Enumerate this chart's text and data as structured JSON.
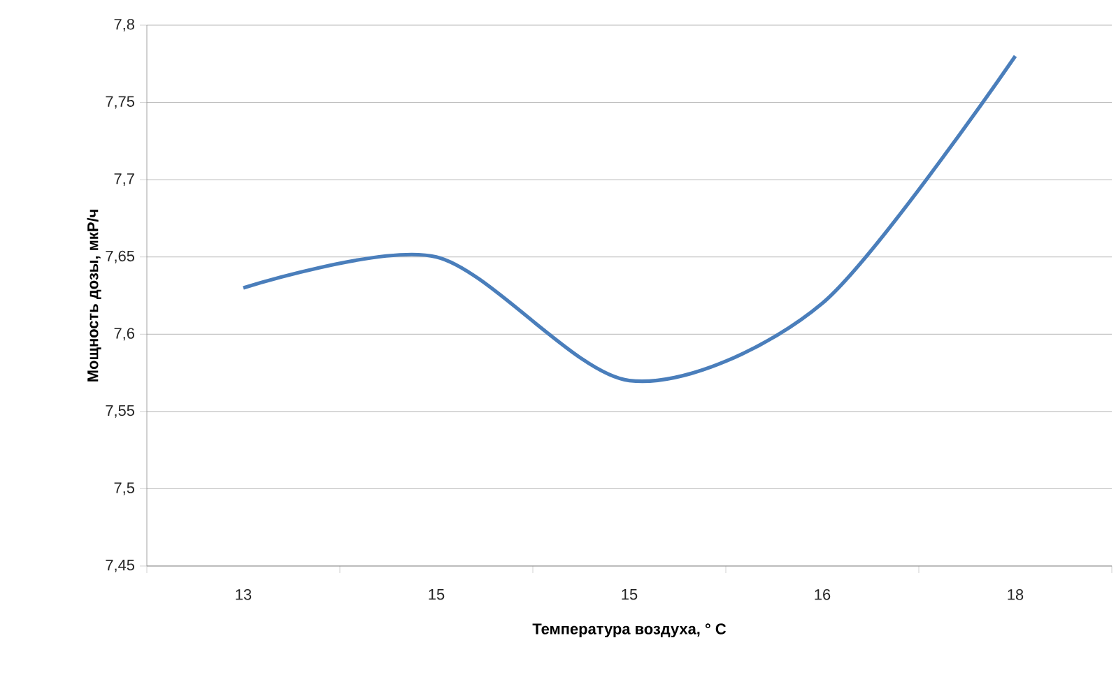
{
  "chart_data": {
    "type": "line",
    "xlabel": "Температура воздуха, ° С",
    "ylabel": "Мощность дозы, мкР/ч",
    "categories": [
      "13",
      "15",
      "15",
      "16",
      "18"
    ],
    "series": [
      {
        "color": "#4a7ebb",
        "values": [
          7.63,
          7.65,
          7.57,
          7.62,
          7.78
        ]
      }
    ],
    "ylim": [
      7.45,
      7.8
    ],
    "yticks": [
      {
        "value": 7.45,
        "label": "7,45"
      },
      {
        "value": 7.5,
        "label": "7,5"
      },
      {
        "value": 7.55,
        "label": "7,55"
      },
      {
        "value": 7.6,
        "label": "7,6"
      },
      {
        "value": 7.65,
        "label": "7,65"
      },
      {
        "value": 7.7,
        "label": "7,7"
      },
      {
        "value": 7.75,
        "label": "7,75"
      },
      {
        "value": 7.8,
        "label": "7,8"
      }
    ],
    "grid": "y",
    "legend": false,
    "marker": "none",
    "line_style": "solid"
  }
}
